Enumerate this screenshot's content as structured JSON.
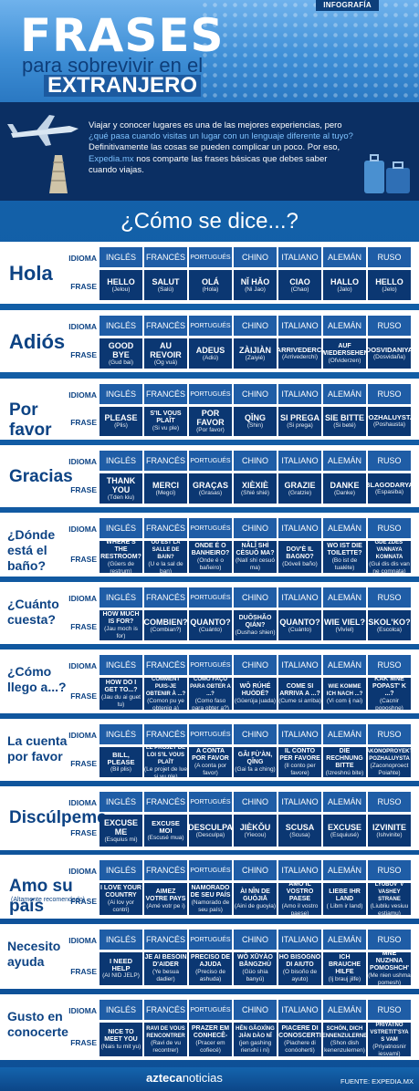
{
  "header": {
    "tag": "INFOGRAFÍA",
    "title_1": "FRASES",
    "title_2": "para sobrevivir en el",
    "title_3": "EXTRANJERO"
  },
  "intro": {
    "line_1": "Viajar y conocer lugares es una de las mejores experiencias, pero",
    "line_2": "¿qué pasa cuando visitas un lugar con un lenguaje diferente al tuyo?",
    "line_3": "Definitivamente las cosas se pueden complicar un poco. Por eso,",
    "line_4a": "Expedia.mx",
    "line_4b": " nos comparte las frases básicas que debes saber",
    "line_5": "cuando viajas."
  },
  "question": "¿Cómo se dice...?",
  "labels": {
    "idioma": "IDIOMA",
    "frase": "FRASE"
  },
  "languages": [
    "INGLÉS",
    "FRANCÉS",
    "PORTUGUÉS",
    "CHINO",
    "ITALIANO",
    "ALEMÁN",
    "RUSO"
  ],
  "sections": [
    {
      "label": "Hola",
      "phrases": [
        [
          "HELLO",
          "(Jelou)"
        ],
        [
          "SALUT",
          "(Salú)"
        ],
        [
          "OLÁ",
          "(Hola)"
        ],
        [
          "NǏ HǍO",
          "(Ni Jao)"
        ],
        [
          "CIAO",
          "(Chao)"
        ],
        [
          "HALLO",
          "(Jalo)"
        ],
        [
          "HELLO",
          "(Jelo)"
        ]
      ]
    },
    {
      "label": "Adiós",
      "phrases": [
        [
          "GOOD BYE",
          "(Gud bai)"
        ],
        [
          "AU REVOIR",
          "(Og vuá)"
        ],
        [
          "ADEUS",
          "(Adiú)"
        ],
        [
          "ZÀIJIÀN",
          "(Zaiyié)"
        ],
        [
          "ARRIVEDERCI",
          "(Arrivederchi)"
        ],
        [
          "AUF WIEDERSEHEN",
          "(Ofviderzen)"
        ],
        [
          "DOSVIDANIYA",
          "(Dosvidaña)"
        ]
      ]
    },
    {
      "label": "Por favor",
      "phrases": [
        [
          "PLEASE",
          "(Plis)"
        ],
        [
          "S'IL VOUS PLAÎT",
          "(Si vu ple)"
        ],
        [
          "POR FAVOR",
          "(Por favor)"
        ],
        [
          "QǏNG",
          "(Shin)"
        ],
        [
          "SI PREGA",
          "(Si prega)"
        ],
        [
          "SIE BITTE",
          "(Si beté)"
        ],
        [
          "POZHALUYSTA",
          "(Poshausta)"
        ]
      ]
    },
    {
      "label": "Gracias",
      "phrases": [
        [
          "THANK YOU",
          "(Tden kiu)"
        ],
        [
          "MERCI",
          "(Megci)"
        ],
        [
          "GRAÇAS",
          "(Grasas)"
        ],
        [
          "XIÈXIÈ",
          "(Shié shié)"
        ],
        [
          "GRAZIE",
          "(Gratzie)"
        ],
        [
          "DANKE",
          "(Danke)"
        ],
        [
          "BLAGODARYA",
          "(Espasiba)"
        ]
      ]
    },
    {
      "label": "¿Dónde está el baño?",
      "phrases": [
        [
          "WHERE'S THE RESTROOM?",
          "(Güers de restrum)"
        ],
        [
          "OÙ EST LA SALLE DE BAIN?",
          "(U e la sal de ban)"
        ],
        [
          "ONDE É O BANHEIRO?",
          "(Onde é o bañeiro)"
        ],
        [
          "NǍLǏ SHÌ CÈSUǑ MA?",
          "(Nalí shi cesuó ma)"
        ],
        [
          "DOV'È IL BAGNO?",
          "(Dóveli baño)"
        ],
        [
          "WO IST DIE TOILETTE?",
          "(Bo ist de tualéte)"
        ],
        [
          "GDE ZDES' VANNAYA KOMNATA",
          "(Gui dis dis van ne comnata)"
        ]
      ]
    },
    {
      "label": "¿Cuánto cuesta?",
      "phrases": [
        [
          "HOW MUCH IS FOR?",
          "(Jau moch is for)"
        ],
        [
          "COMBIEN?",
          "(Combian?)"
        ],
        [
          "QUANTO?",
          "(Cuánto)"
        ],
        [
          "DUŌSHǍO QIÁN?",
          "(Dushao shien)"
        ],
        [
          "QUANTO?",
          "(Cuánto)"
        ],
        [
          "WIE VIEL?",
          "(Vivíel)"
        ],
        [
          "SKOL'KO?",
          "(Escolca)"
        ]
      ]
    },
    {
      "label": "¿Cómo llego a...?",
      "phrases": [
        [
          "HOW DO I GET TO...?",
          "(Jau du ai guet tu)"
        ],
        [
          "COMMENT PUIS-JE OBTENIR À ...?",
          "(Comon pu ye obtenig a)"
        ],
        [
          "COMO FAÇO PARA OBTER A ...?",
          "(Como faso para obter a?)"
        ],
        [
          "WǑ RÚHÉ HUÒDÉ?",
          "(Güerúja juada)"
        ],
        [
          "COME SI ARRIVA A ...?",
          "(Cume si arriba)"
        ],
        [
          "WIE KOMME ICH NACH ...?",
          "(Vi com ij nai)"
        ],
        [
          "KAK MNE POPAST' K ...?",
          "(Cacnir poposhne)"
        ]
      ]
    },
    {
      "label": "La cuenta por favor",
      "phrases": [
        [
          "BILL, PLEASE",
          "(Bil plis)"
        ],
        [
          "LE PROJET DE LOI S'IL VOUS PLAÎT",
          "(Le projet de lue si vu ple)"
        ],
        [
          "A CONTA POR FAVOR",
          "(A conta por favor)"
        ],
        [
          "GǍI FÙ'ÀN, QǏNG",
          "(Gai fa a ching)"
        ],
        [
          "IL CONTO PER FAVORE",
          "(Il conto per favore)"
        ],
        [
          "DIE RECHNUNG BITTE",
          "(Izreshnú bite)"
        ],
        [
          "AKONOPROYEKT POZHALUYSTA",
          "(Zaconoproect Poiahte)"
        ]
      ]
    },
    {
      "label": "Discúlpeme",
      "phrases": [
        [
          "EXCUSE ME",
          "(Esquius mi)"
        ],
        [
          "EXCUSE MOI",
          "(Escusé mua)"
        ],
        [
          "DESCULPA",
          "(Desculpa)"
        ],
        [
          "JIÈKǑU",
          "(Yiecou)"
        ],
        [
          "SCUSA",
          "(Scusa)"
        ],
        [
          "EXCUSE",
          "(Esquiusé)"
        ],
        [
          "IZVINITE",
          "(Ishvinite)"
        ]
      ]
    },
    {
      "label": "Amo su país",
      "sub": "(Altamente recomendado)",
      "phrases": [
        [
          "I LOVE YOUR COUNTRY",
          "(Ai lov yor contri)"
        ],
        [
          "AIMEZ VOTRE PAYS",
          "(Amé votr pe i)"
        ],
        [
          "NAMORADO DE SEU PAÍS",
          "(Namorado de seu país)"
        ],
        [
          "ÀI NǏN DE GUÓJIĀ",
          "(Aini de guoyia)"
        ],
        [
          "AMO IL VOSTRO PAESE",
          "(Amo il vostro paese)"
        ],
        [
          "LIEBE IHR LAND",
          "( Libm ir land)"
        ],
        [
          "LYUBOV' V VASHEY STRANE",
          "(Liubliu vesiuu estiamu)"
        ]
      ]
    },
    {
      "label": "Necesito ayuda",
      "phrases": [
        [
          "I NEED HELP",
          "(AI NID JELP)"
        ],
        [
          "JE AI BESOIN D'AIDER",
          "(Ye besua dadier)"
        ],
        [
          "PRECISO DE AJUDA",
          "(Preciso de ashuda)"
        ],
        [
          "WǑ XŪYÀO BĀNGZHÙ",
          "(Güo shia banyú)"
        ],
        [
          "HO BISOGNO DI AIUTO",
          "(O bisoño de ayuto)"
        ],
        [
          "ICH BRAUCHE HILFE",
          "(Ij brauj jilfe)"
        ],
        [
          "MNE NUZHNA POMOSHCH'",
          "(Me nien ushma pomesh)"
        ]
      ]
    },
    {
      "label": "Gusto en conocerte",
      "phrases": [
        [
          "NICE TO MEET YOU",
          "(Nais tu mit yu)"
        ],
        [
          "RAVI DE VOUS RENCONTRER",
          "(Ravi de vu recontrer)"
        ],
        [
          "PRAZER EM CONHECÊ-",
          "(Pracer em cofiecé)"
        ],
        [
          "HĚN GĀOXÌNG JIÀN DÀO NǏ",
          "(jen gashing rienshi i ni)"
        ],
        [
          "PIACERE DI CONOSCERTI",
          "(Piachere di conóoherti)"
        ],
        [
          "SCHÖN, DICH KENNENZULERNEN",
          "(Shon dish kenenzulernen)"
        ],
        [
          "PRIYATNO VSTRETIT'SYA S VAM",
          "(Priyatnosnir iesvami)"
        ]
      ]
    }
  ],
  "footer": {
    "logo_a": "azteca",
    "logo_b": "noticias",
    "source": "FUENTE: EXPEDIA.MX"
  }
}
